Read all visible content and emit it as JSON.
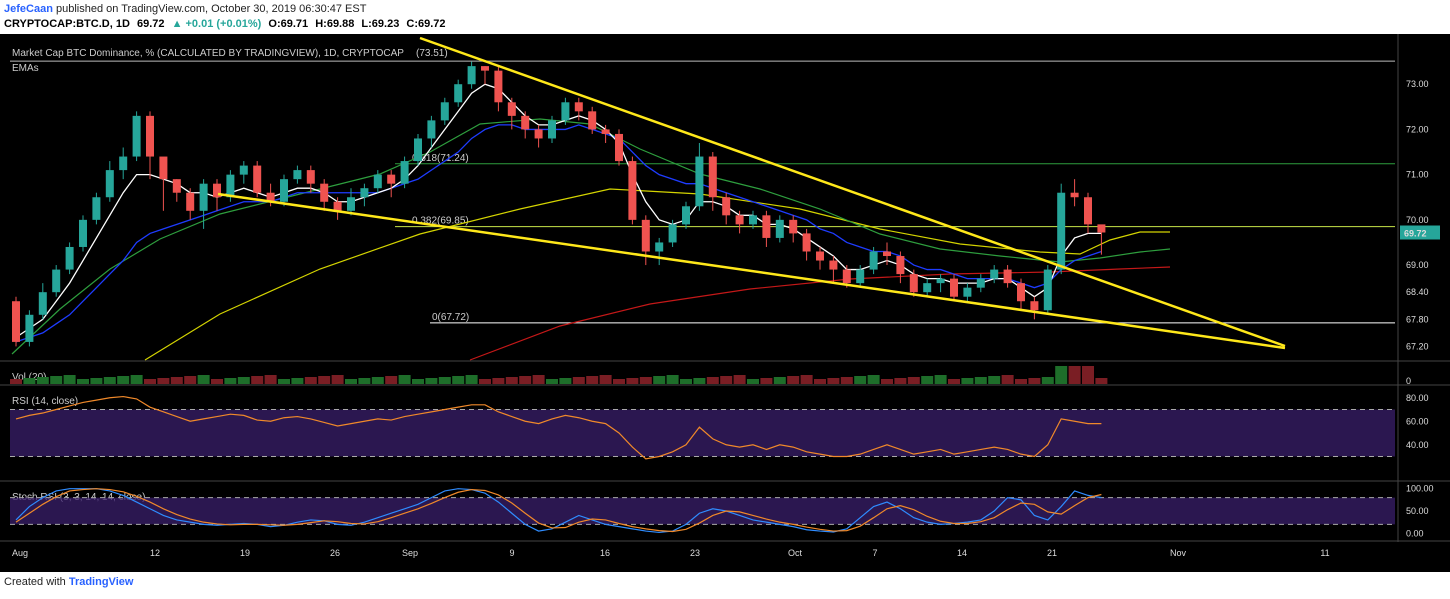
{
  "header": {
    "author": "JefeCaan",
    "published": "published on TradingView.com, October 30, 2019 06:30:47 EST",
    "symbol": "CRYPTOCAP:BTC.D, 1D",
    "last": "69.72",
    "change": "▲ +0.01 (+0.01%)",
    "open": "O:69.71",
    "high": "H:69.88",
    "low": "L:69.23",
    "close": "C:69.72"
  },
  "footer": {
    "created": "Created with",
    "brand": "TradingView"
  },
  "colors": {
    "bg": "#000000",
    "up": "#26a69a",
    "down": "#ef5350",
    "ema_fast": "#ffffff",
    "ema_mid": "#1e3cff",
    "ema_slow": "#2e9e3e",
    "ema_100": "#d4d400",
    "ema_200": "#c41818",
    "trend": "#ffe81a",
    "rsi": "#f0892a",
    "stoch_k": "#2f8cff",
    "stoch_d": "#f0892a"
  },
  "chart_data": {
    "type": "candlestick",
    "title": "Market Cap BTC Dominance, % (CALCULATED BY TRADINGVIEW), 1D, CRYPTOCAP",
    "title_value": "(73.51)",
    "indicator_label": "EMAs",
    "price_axis": {
      "ticks": [
        "73.00",
        "72.00",
        "71.00",
        "70.00",
        "69.00",
        "68.40",
        "67.80",
        "67.20"
      ],
      "ylim": [
        66.9,
        74.0
      ],
      "last_price": "69.72"
    },
    "x_ticks": [
      "Aug",
      "12",
      "19",
      "26",
      "Sep",
      "9",
      "16",
      "23",
      "Oct",
      "7",
      "14",
      "21",
      "Nov",
      "11"
    ],
    "fib_levels": [
      {
        "label": "0.618(71.24)",
        "value": 71.24
      },
      {
        "label": "0.382(69.85)",
        "value": 69.85
      },
      {
        "label": "0(67.72)",
        "value": 67.72
      }
    ],
    "candles": [
      [
        68.2,
        67.3,
        68.3,
        67.2
      ],
      [
        67.3,
        67.9,
        68.0,
        67.2
      ],
      [
        67.9,
        68.4,
        68.6,
        67.8
      ],
      [
        68.4,
        68.9,
        69.0,
        68.3
      ],
      [
        68.9,
        69.4,
        69.5,
        68.8
      ],
      [
        69.4,
        70.0,
        70.1,
        69.3
      ],
      [
        70.0,
        70.5,
        70.6,
        69.9
      ],
      [
        70.5,
        71.1,
        71.3,
        70.4
      ],
      [
        71.1,
        71.4,
        71.6,
        70.9
      ],
      [
        71.4,
        72.3,
        72.4,
        71.3
      ],
      [
        72.3,
        71.4,
        72.4,
        70.9
      ],
      [
        71.4,
        70.9,
        71.0,
        70.2
      ],
      [
        70.9,
        70.6,
        70.9,
        70.4
      ],
      [
        70.6,
        70.2,
        70.7,
        70.0
      ],
      [
        70.2,
        70.8,
        70.9,
        69.8
      ],
      [
        70.8,
        70.5,
        70.9,
        70.2
      ],
      [
        70.5,
        71.0,
        71.1,
        70.4
      ],
      [
        71.0,
        71.2,
        71.3,
        70.8
      ],
      [
        71.2,
        70.6,
        71.3,
        70.5
      ],
      [
        70.6,
        70.4,
        70.8,
        70.3
      ],
      [
        70.4,
        70.9,
        71.0,
        70.3
      ],
      [
        70.9,
        71.1,
        71.2,
        70.8
      ],
      [
        71.1,
        70.8,
        71.2,
        70.6
      ],
      [
        70.8,
        70.4,
        70.9,
        70.2
      ],
      [
        70.4,
        70.2,
        70.5,
        70.0
      ],
      [
        70.2,
        70.5,
        70.7,
        70.1
      ],
      [
        70.5,
        70.7,
        70.8,
        70.3
      ],
      [
        70.7,
        71.0,
        71.1,
        70.6
      ],
      [
        71.0,
        70.8,
        71.1,
        70.5
      ],
      [
        70.8,
        71.3,
        71.4,
        70.7
      ],
      [
        71.3,
        71.8,
        71.9,
        71.2
      ],
      [
        71.8,
        72.2,
        72.3,
        71.6
      ],
      [
        72.2,
        72.6,
        72.7,
        72.1
      ],
      [
        72.6,
        73.0,
        73.1,
        72.5
      ],
      [
        73.0,
        73.4,
        73.5,
        72.9
      ],
      [
        73.4,
        73.3,
        73.4,
        73.0
      ],
      [
        73.3,
        72.6,
        73.4,
        72.4
      ],
      [
        72.6,
        72.3,
        72.7,
        72.0
      ],
      [
        72.3,
        72.0,
        72.4,
        71.8
      ],
      [
        72.0,
        71.8,
        72.1,
        71.6
      ],
      [
        71.8,
        72.2,
        72.3,
        71.7
      ],
      [
        72.2,
        72.6,
        72.7,
        72.1
      ],
      [
        72.6,
        72.4,
        72.7,
        72.2
      ],
      [
        72.4,
        72.0,
        72.5,
        71.9
      ],
      [
        72.0,
        71.9,
        72.1,
        71.7
      ],
      [
        71.9,
        71.3,
        72.0,
        71.2
      ],
      [
        71.3,
        70.0,
        71.4,
        69.9
      ],
      [
        70.0,
        69.3,
        70.1,
        69.0
      ],
      [
        69.3,
        69.5,
        69.6,
        69.0
      ],
      [
        69.5,
        69.9,
        70.0,
        69.4
      ],
      [
        69.9,
        70.3,
        70.4,
        69.8
      ],
      [
        70.3,
        71.4,
        71.7,
        70.2
      ],
      [
        71.4,
        70.5,
        71.5,
        70.2
      ],
      [
        70.5,
        70.1,
        70.6,
        69.9
      ],
      [
        70.1,
        69.9,
        70.2,
        69.7
      ],
      [
        69.9,
        70.1,
        70.2,
        69.8
      ],
      [
        70.1,
        69.6,
        70.2,
        69.4
      ],
      [
        69.6,
        70.0,
        70.1,
        69.5
      ],
      [
        70.0,
        69.7,
        70.1,
        69.5
      ],
      [
        69.7,
        69.3,
        69.8,
        69.1
      ],
      [
        69.3,
        69.1,
        69.4,
        68.9
      ],
      [
        69.1,
        68.9,
        69.2,
        68.6
      ],
      [
        68.9,
        68.6,
        69.0,
        68.5
      ],
      [
        68.6,
        68.9,
        69.0,
        68.5
      ],
      [
        68.9,
        69.3,
        69.4,
        68.8
      ],
      [
        69.3,
        69.2,
        69.5,
        69.0
      ],
      [
        69.2,
        68.8,
        69.3,
        68.6
      ],
      [
        68.8,
        68.4,
        68.9,
        68.3
      ],
      [
        68.4,
        68.6,
        68.7,
        68.3
      ],
      [
        68.6,
        68.7,
        68.8,
        68.4
      ],
      [
        68.7,
        68.3,
        68.8,
        68.2
      ],
      [
        68.3,
        68.5,
        68.6,
        68.2
      ],
      [
        68.5,
        68.7,
        68.8,
        68.4
      ],
      [
        68.7,
        68.9,
        69.0,
        68.6
      ],
      [
        68.9,
        68.6,
        69.0,
        68.5
      ],
      [
        68.6,
        68.2,
        68.7,
        68.0
      ],
      [
        68.2,
        68.0,
        68.3,
        67.8
      ],
      [
        68.0,
        68.9,
        69.0,
        67.9
      ],
      [
        68.9,
        70.6,
        70.8,
        68.8
      ],
      [
        70.6,
        70.5,
        70.9,
        70.3
      ],
      [
        70.5,
        69.9,
        70.6,
        69.7
      ],
      [
        69.9,
        69.72,
        69.88,
        69.23
      ]
    ],
    "ema_fast": [
      67.4,
      67.6,
      67.8,
      68.2,
      68.6,
      69.1,
      69.6,
      70.1,
      70.6,
      71.0,
      71.0,
      70.9,
      70.8,
      70.6,
      70.6,
      70.5,
      70.6,
      70.7,
      70.6,
      70.5,
      70.6,
      70.7,
      70.7,
      70.6,
      70.4,
      70.4,
      70.5,
      70.6,
      70.7,
      70.9,
      71.2,
      71.6,
      72.0,
      72.4,
      72.8,
      73.0,
      72.9,
      72.6,
      72.3,
      72.1,
      72.1,
      72.2,
      72.3,
      72.2,
      72.0,
      71.7,
      71.0,
      70.4,
      70.0,
      69.9,
      70.0,
      70.4,
      70.4,
      70.3,
      70.1,
      70.1,
      69.9,
      69.9,
      69.8,
      69.6,
      69.4,
      69.2,
      68.9,
      68.9,
      69.0,
      69.1,
      69.0,
      68.8,
      68.7,
      68.7,
      68.6,
      68.6,
      68.6,
      68.7,
      68.7,
      68.5,
      68.3,
      68.5,
      69.2,
      69.6,
      69.7,
      69.7
    ],
    "ema_mid": [
      67.3,
      67.4,
      67.5,
      67.7,
      67.9,
      68.2,
      68.5,
      68.8,
      69.1,
      69.5,
      69.7,
      69.8,
      69.9,
      70.0,
      70.1,
      70.2,
      70.3,
      70.4,
      70.4,
      70.4,
      70.5,
      70.6,
      70.6,
      70.6,
      70.6,
      70.6,
      70.6,
      70.6,
      70.7,
      70.8,
      70.9,
      71.1,
      71.3,
      71.5,
      71.8,
      72.0,
      72.1,
      72.1,
      72.0,
      72.0,
      72.0,
      72.0,
      72.1,
      72.0,
      71.9,
      71.8,
      71.5,
      71.2,
      71.0,
      70.9,
      70.8,
      70.8,
      70.7,
      70.6,
      70.5,
      70.4,
      70.3,
      70.2,
      70.1,
      70.0,
      69.8,
      69.7,
      69.5,
      69.4,
      69.3,
      69.3,
      69.2,
      69.0,
      68.9,
      68.9,
      68.8,
      68.7,
      68.7,
      68.7,
      68.7,
      68.6,
      68.5,
      68.6,
      68.9,
      69.1,
      69.2,
      69.3
    ]
  },
  "rsi": {
    "label": "RSI (14, close)",
    "ticks": [
      "80.00",
      "60.00",
      "40.00"
    ],
    "ylim": [
      10,
      90
    ],
    "band": [
      30,
      70
    ],
    "values": [
      62,
      65,
      67,
      70,
      73,
      76,
      78,
      80,
      81,
      79,
      72,
      68,
      64,
      60,
      62,
      64,
      66,
      65,
      61,
      60,
      63,
      64,
      62,
      59,
      56,
      58,
      60,
      62,
      61,
      64,
      66,
      68,
      70,
      72,
      74,
      74,
      68,
      64,
      60,
      58,
      62,
      65,
      63,
      60,
      58,
      50,
      38,
      28,
      30,
      34,
      40,
      55,
      45,
      40,
      38,
      40,
      36,
      40,
      38,
      34,
      32,
      30,
      30,
      32,
      36,
      40,
      36,
      32,
      34,
      36,
      32,
      34,
      36,
      38,
      36,
      32,
      30,
      40,
      62,
      60,
      58,
      58
    ],
    "values_label": "RSI"
  },
  "stoch": {
    "label": "Stoch RSI (3, 3, 14, 14, close)",
    "ticks": [
      "100.00",
      "50.00",
      "0.00"
    ],
    "ylim": [
      -15,
      115
    ],
    "band": [
      20,
      80
    ],
    "k": [
      30,
      60,
      80,
      95,
      100,
      100,
      100,
      95,
      85,
      70,
      55,
      40,
      30,
      25,
      20,
      18,
      20,
      22,
      20,
      15,
      18,
      25,
      30,
      28,
      20,
      18,
      25,
      35,
      45,
      55,
      65,
      80,
      95,
      100,
      98,
      90,
      70,
      45,
      20,
      5,
      10,
      25,
      40,
      30,
      20,
      15,
      10,
      5,
      2,
      5,
      20,
      45,
      55,
      50,
      40,
      30,
      25,
      20,
      15,
      8,
      5,
      3,
      10,
      35,
      60,
      70,
      55,
      35,
      25,
      20,
      22,
      25,
      30,
      50,
      80,
      75,
      40,
      30,
      60,
      95,
      85,
      80
    ],
    "d": [
      25,
      45,
      65,
      82,
      95,
      98,
      100,
      98,
      93,
      83,
      70,
      55,
      42,
      32,
      25,
      21,
      19,
      20,
      20,
      19,
      18,
      20,
      24,
      28,
      26,
      22,
      21,
      26,
      35,
      45,
      55,
      67,
      80,
      92,
      98,
      96,
      86,
      68,
      45,
      23,
      12,
      13,
      25,
      32,
      30,
      22,
      15,
      10,
      6,
      4,
      9,
      23,
      40,
      50,
      48,
      40,
      32,
      25,
      20,
      14,
      9,
      5,
      6,
      16,
      35,
      55,
      62,
      53,
      38,
      27,
      22,
      22,
      26,
      35,
      53,
      68,
      65,
      48,
      43,
      62,
      80,
      87
    ],
    "values_label": "Stoch RSI"
  },
  "volume": {
    "label": "Vol (20)",
    "ticks": [
      "0"
    ]
  }
}
